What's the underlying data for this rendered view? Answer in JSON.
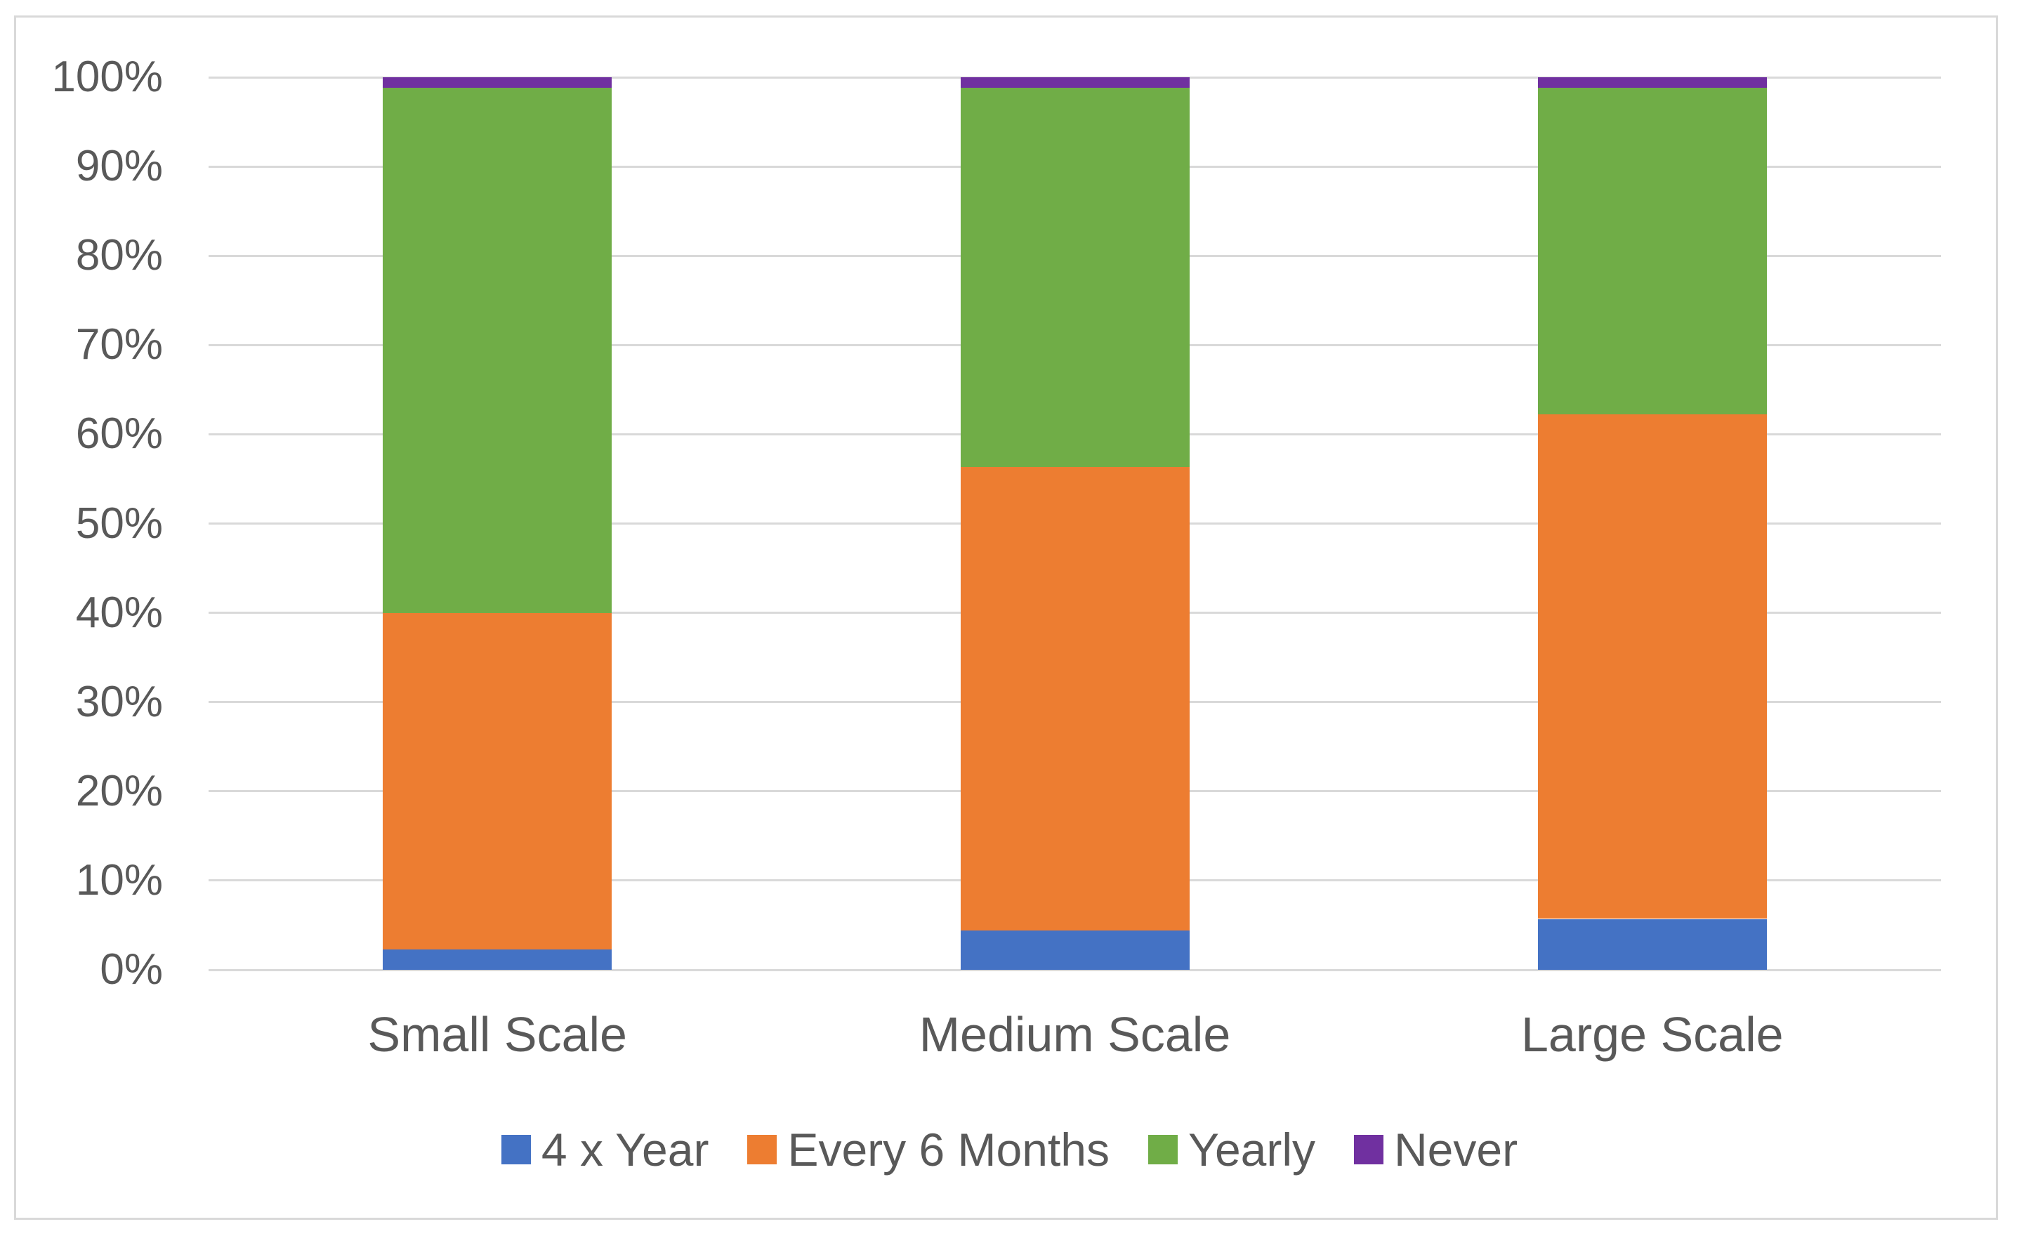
{
  "figure": {
    "background_color": "#FFFFFF",
    "frame_border_color": "#D9D9D9",
    "gridline_color": "#D9D9D9",
    "text_color": "#595959"
  },
  "chart_data": {
    "type": "bar",
    "subtype": "stacked-100-percent-column",
    "title": "",
    "xlabel": "",
    "ylabel": "",
    "categories": [
      "Small Scale",
      "Medium Scale",
      "Large Scale"
    ],
    "series": [
      {
        "name": "4 x Year",
        "color": "#4472C4",
        "values": [
          2.3,
          4.4,
          5.7
        ]
      },
      {
        "name": "Every 6 Months",
        "color": "#ED7D31",
        "values": [
          37.7,
          51.9,
          56.5
        ]
      },
      {
        "name": "Yearly",
        "color": "#70AD47",
        "values": [
          58.8,
          42.5,
          36.6
        ]
      },
      {
        "name": "Never",
        "color": "#7030A0",
        "values": [
          1.2,
          1.2,
          1.2
        ]
      }
    ],
    "ylim": [
      0,
      100
    ],
    "y_ticks": [
      "0%",
      "10%",
      "20%",
      "30%",
      "40%",
      "50%",
      "60%",
      "70%",
      "80%",
      "90%",
      "100%"
    ],
    "grid": true,
    "legend_position": "bottom"
  }
}
